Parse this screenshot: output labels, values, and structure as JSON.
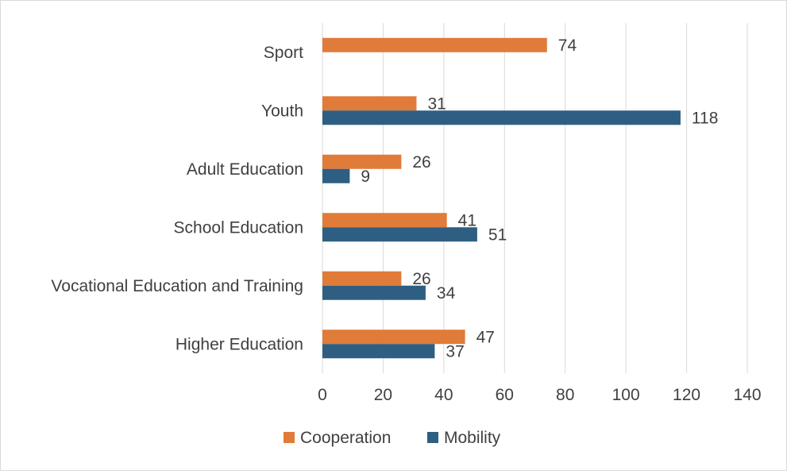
{
  "chart_data": {
    "type": "bar",
    "orientation": "horizontal",
    "categories": [
      "Higher Education",
      "Vocational Education and Training",
      "School Education",
      "Adult Education",
      "Youth",
      "Sport"
    ],
    "series": [
      {
        "name": "Cooperation",
        "color": "#E07B39",
        "values": [
          47,
          26,
          41,
          26,
          31,
          74
        ]
      },
      {
        "name": "Mobility",
        "color": "#2E5F82",
        "values": [
          37,
          34,
          51,
          9,
          118,
          null
        ]
      }
    ],
    "xlim": [
      0,
      140
    ],
    "xticks": [
      0,
      20,
      40,
      60,
      80,
      100,
      120,
      140
    ],
    "grid": "vertical",
    "legend_position": "bottom",
    "data_labels": true
  }
}
